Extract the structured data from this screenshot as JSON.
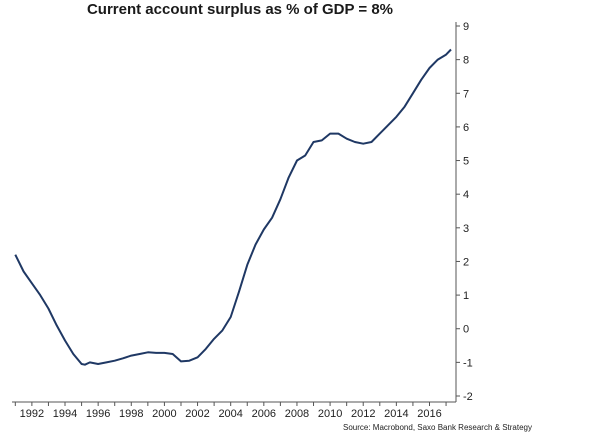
{
  "chart_data": {
    "type": "line",
    "title": "Current account surplus as % of GDP = 8%",
    "xlabel": "",
    "ylabel": "",
    "source": "Source: Macrobond, Saxo Bank Research & Strategy",
    "xlim": [
      1990.8,
      2017.6
    ],
    "ylim": [
      -2,
      9
    ],
    "x_ticks": [
      1992,
      1994,
      1996,
      1998,
      2000,
      2002,
      2004,
      2006,
      2008,
      2010,
      2012,
      2014,
      2016
    ],
    "y_ticks": [
      -2,
      -1,
      0,
      1,
      2,
      3,
      4,
      5,
      6,
      7,
      8,
      9
    ],
    "y_axis_position": "right",
    "grid": false,
    "line_color": "#1f3864",
    "series": [
      {
        "name": "Current account surplus as % of GDP",
        "x": [
          1991.0,
          1991.5,
          1992.0,
          1992.5,
          1993.0,
          1993.5,
          1994.0,
          1994.5,
          1995.0,
          1995.2,
          1995.5,
          1996.0,
          1996.5,
          1997.0,
          1997.5,
          1998.0,
          1998.5,
          1999.0,
          1999.5,
          2000.0,
          2000.5,
          2001.0,
          2001.5,
          2002.0,
          2002.5,
          2003.0,
          2003.5,
          2004.0,
          2004.5,
          2005.0,
          2005.5,
          2006.0,
          2006.5,
          2007.0,
          2007.5,
          2008.0,
          2008.5,
          2009.0,
          2009.5,
          2010.0,
          2010.5,
          2011.0,
          2011.5,
          2012.0,
          2012.5,
          2013.0,
          2013.5,
          2014.0,
          2014.5,
          2015.0,
          2015.5,
          2016.0,
          2016.5,
          2017.0,
          2017.3
        ],
        "values": [
          2.2,
          1.7,
          1.35,
          1.0,
          0.6,
          0.1,
          -0.35,
          -0.75,
          -1.05,
          -1.07,
          -1.0,
          -1.05,
          -1.0,
          -0.95,
          -0.88,
          -0.8,
          -0.75,
          -0.7,
          -0.72,
          -0.72,
          -0.75,
          -0.97,
          -0.95,
          -0.85,
          -0.6,
          -0.3,
          -0.05,
          0.35,
          1.1,
          1.9,
          2.5,
          2.95,
          3.3,
          3.85,
          4.5,
          5.0,
          5.15,
          5.55,
          5.6,
          5.8,
          5.8,
          5.65,
          5.55,
          5.5,
          5.55,
          5.8,
          6.05,
          6.3,
          6.6,
          7.0,
          7.4,
          7.75,
          8.0,
          8.15,
          8.3
        ]
      }
    ]
  }
}
